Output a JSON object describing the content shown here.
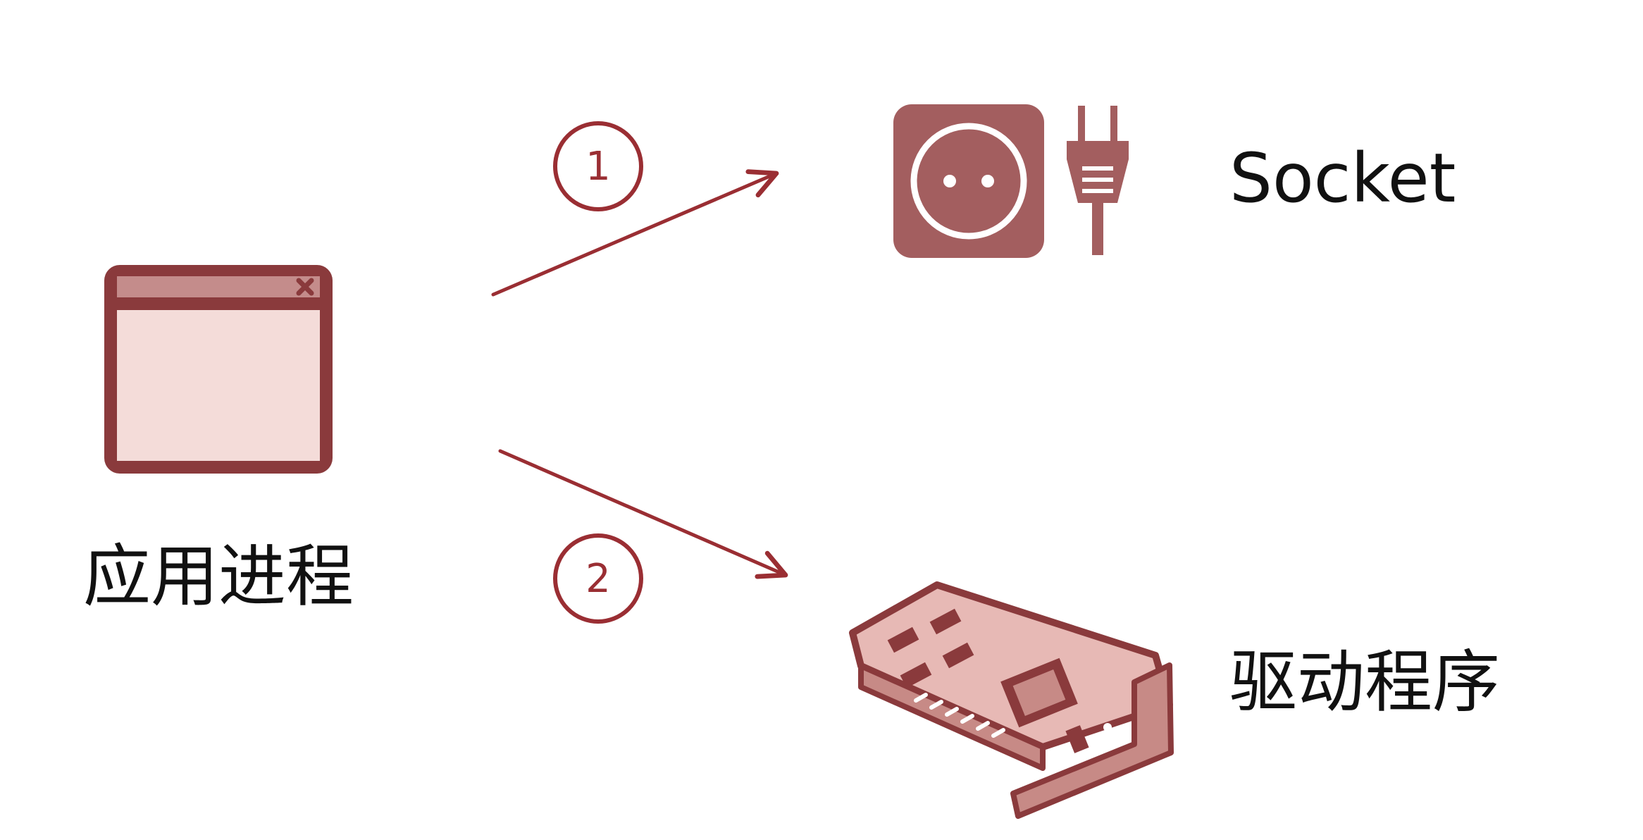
{
  "nodes": {
    "process": {
      "label": "应用进程",
      "icon": "application-window-icon"
    },
    "socket": {
      "label": "Socket",
      "icon": "socket-plug-icon"
    },
    "driver": {
      "label": "驱动程序",
      "icon": "network-card-icon"
    }
  },
  "steps": [
    {
      "number": "1",
      "from": "process",
      "to": "socket"
    },
    {
      "number": "2",
      "from": "process",
      "to": "driver"
    }
  ],
  "colors": {
    "accent": "#9a2e33",
    "icon_dark": "#8a3a3c",
    "icon_fill": "#a35e5f",
    "window_body": "#f4dcd9",
    "window_titlebar": "#c48c8b",
    "card_light": "#e7b9b5",
    "card_mid": "#c78a86",
    "text": "#111111"
  }
}
